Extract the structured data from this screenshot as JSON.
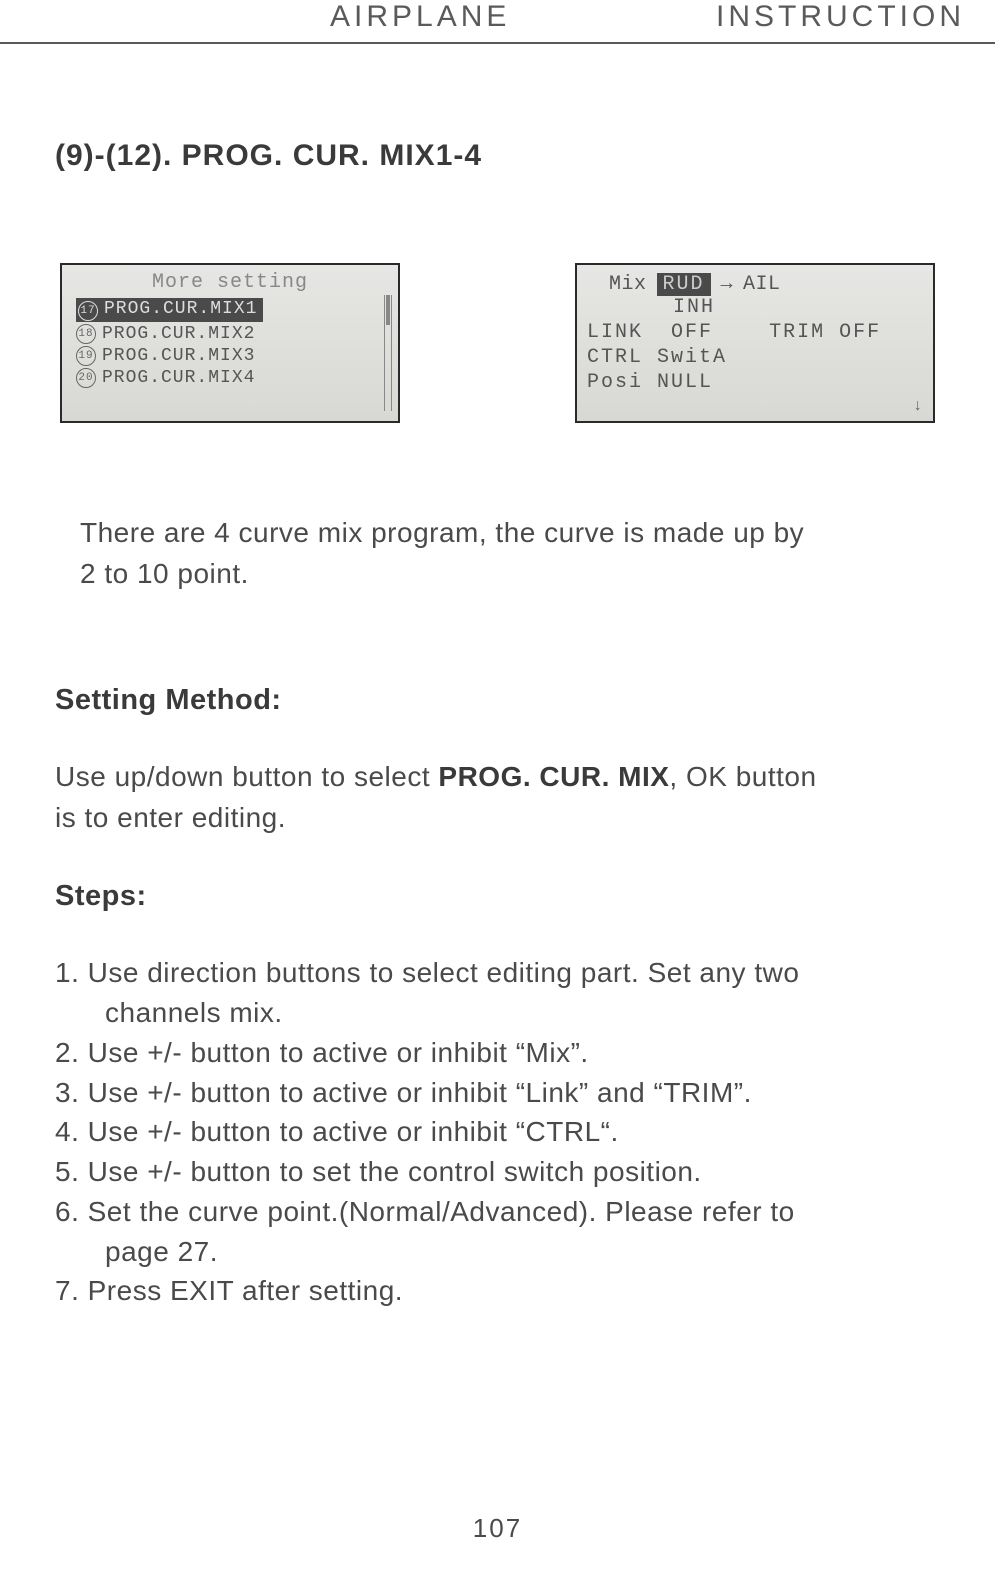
{
  "header": {
    "left": "AIRPLANE",
    "right": "INSTRUCTION"
  },
  "section_title": "(9)-(12). PROG. CUR. MIX1-4",
  "lcd_left": {
    "title": "More setting",
    "items": [
      {
        "num": "17",
        "label": "PROG.CUR.MIX1",
        "selected": true
      },
      {
        "num": "18",
        "label": "PROG.CUR.MIX2",
        "selected": false
      },
      {
        "num": "19",
        "label": "PROG.CUR.MIX3",
        "selected": false
      },
      {
        "num": "20",
        "label": "PROG.CUR.MIX4",
        "selected": false
      }
    ]
  },
  "lcd_right": {
    "mix_label": "Mix",
    "from": "RUD",
    "to": "AIL",
    "inh": "INH",
    "link_label": "LINK",
    "link_val": "OFF",
    "trim_label": "TRIM",
    "trim_val": "OFF",
    "ctrl_label": "CTRL",
    "ctrl_val": "SwitA",
    "posi_label": "Posi",
    "posi_val": "NULL"
  },
  "intro_line1": "There are 4 curve mix program, the curve is made up by",
  "intro_line2": "2 to 10 point.",
  "setting_method_title": "Setting Method:",
  "setting_text_pre": "Use up/down button to select ",
  "setting_text_bold": "PROG. CUR. MIX",
  "setting_text_post": ", OK button",
  "setting_text_line2": " is to enter editing.",
  "steps_title": "Steps:",
  "steps": [
    {
      "t": "1. Use direction buttons to select editing part. Set any two",
      "i": "channels mix."
    },
    {
      "t": "2. Use +/- button to active or inhibit “Mix”."
    },
    {
      "t": "3. Use +/- button to active or inhibit “Link” and “TRIM”."
    },
    {
      "t": "4. Use +/- button to active or inhibit  “CTRL“."
    },
    {
      "t": "5. Use +/- button to set the control switch position."
    },
    {
      "t": "6. Set the curve point.(Normal/Advanced). Please refer to",
      "i": "page 27."
    },
    {
      "t": "7. Press EXIT after setting."
    }
  ],
  "page_number": "107"
}
